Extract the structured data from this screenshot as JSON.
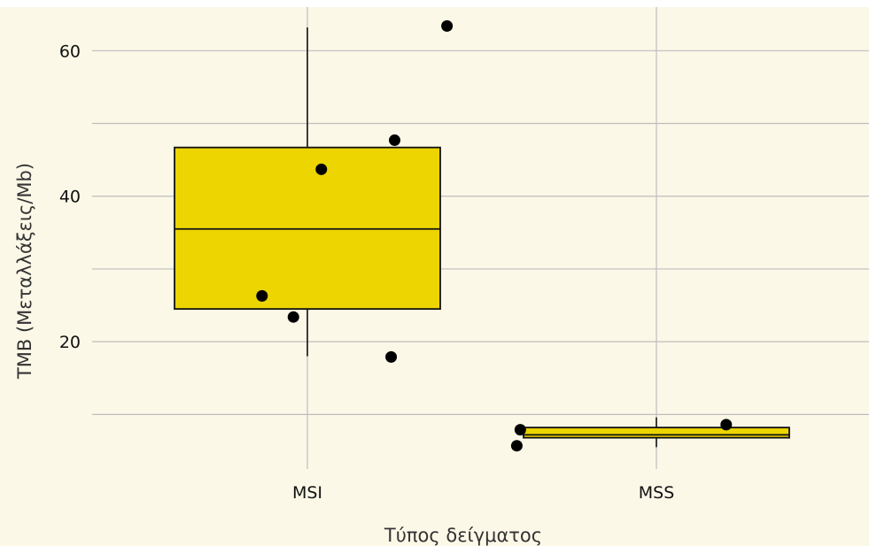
{
  "colors": {
    "page_background": "#ffffff",
    "plot_background": "#fcf8e8",
    "grid": "#bdbdbd",
    "box_fill": "#ecd500",
    "box_stroke": "#111111",
    "point": "#000000"
  },
  "chart_data": {
    "type": "boxplot",
    "xlabel": "Τύπος δείγματος",
    "ylabel": "TMB (Μεταλλάξεις/Mb)",
    "categories": [
      "MSI",
      "MSS"
    ],
    "ylim": [
      2.5,
      66
    ],
    "yticks": [
      20,
      40,
      60
    ],
    "ytick_labels": [
      "20",
      "40",
      "60"
    ],
    "grid": true,
    "legend": "none",
    "boxes": [
      {
        "category": "MSI",
        "whisker_low": 18.0,
        "q1": 24.5,
        "median": 35.5,
        "q3": 46.7,
        "whisker_high": 63.2
      },
      {
        "category": "MSS",
        "whisker_low": 5.5,
        "q1": 6.8,
        "median": 7.2,
        "q3": 8.2,
        "whisker_high": 9.6
      }
    ],
    "points": [
      {
        "category": "MSI",
        "jitter": -0.13,
        "y": 26.3
      },
      {
        "category": "MSI",
        "jitter": -0.04,
        "y": 23.4
      },
      {
        "category": "MSI",
        "jitter": 0.04,
        "y": 43.7
      },
      {
        "category": "MSI",
        "jitter": 0.24,
        "y": 17.9
      },
      {
        "category": "MSI",
        "jitter": 0.25,
        "y": 47.7
      },
      {
        "category": "MSI",
        "jitter": 0.4,
        "y": 63.4
      },
      {
        "category": "MSS",
        "jitter": -0.39,
        "y": 7.9
      },
      {
        "category": "MSS",
        "jitter": -0.4,
        "y": 5.7
      },
      {
        "category": "MSS",
        "jitter": 0.2,
        "y": 8.6
      }
    ]
  }
}
